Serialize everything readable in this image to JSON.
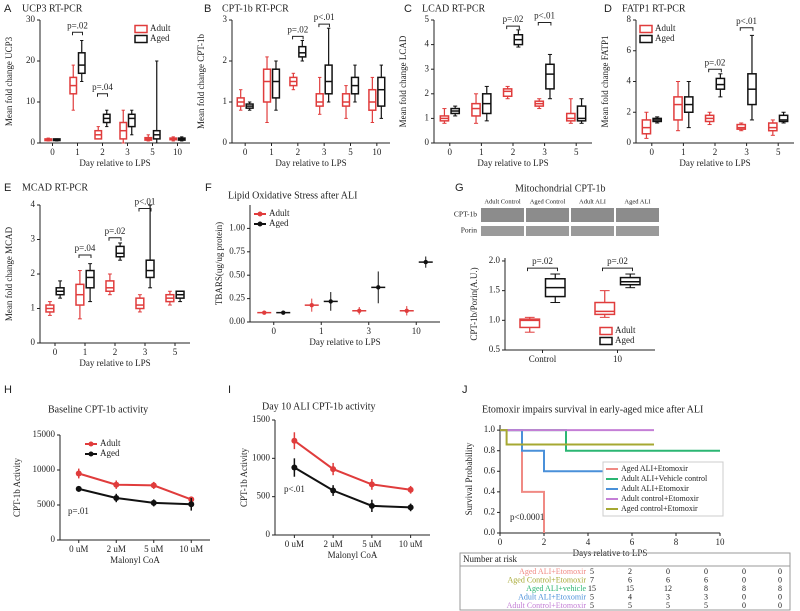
{
  "chart_data": [
    {
      "type": "box",
      "label": "A",
      "title": "UCP3 RT-PCR",
      "ylabel": "Mean fold change  UCP3",
      "xlabel": "Day relative to LPS",
      "categories": [
        "0",
        "1",
        "2",
        "3",
        "5",
        "10"
      ],
      "ylim": [
        0,
        30
      ],
      "yticks": [
        0,
        10,
        20,
        30
      ],
      "legend": "upper right",
      "annotations": [
        "p=.02",
        "p=.04"
      ],
      "series": [
        {
          "name": "Adult",
          "color": "#e03c3c",
          "boxes": [
            [
              0.5,
              0.6,
              0.8,
              1,
              1.2
            ],
            [
              8,
              12,
              14,
              16,
              19
            ],
            [
              1,
              1,
              2,
              3,
              4
            ],
            [
              0,
              1,
              3,
              5,
              8
            ],
            [
              0.5,
              0.7,
              1,
              1.3,
              2
            ],
            [
              0.5,
              0.8,
              1,
              1.2,
              1.5
            ]
          ]
        },
        {
          "name": "Aged",
          "color": "#111111",
          "boxes": [
            [
              0.5,
              0.6,
              0.8,
              1,
              1
            ],
            [
              15,
              17,
              19,
              22,
              25
            ],
            [
              4,
              5,
              6,
              7,
              8
            ],
            [
              2,
              4,
              6,
              7,
              8
            ],
            [
              0,
              1,
              2,
              3,
              20
            ],
            [
              0.5,
              0.7,
              1,
              1.2,
              1.5
            ]
          ]
        }
      ]
    },
    {
      "type": "box",
      "label": "B",
      "title": "CPT-1b RT-PCR",
      "ylabel": "Mean fold change  CPT-1b",
      "xlabel": "Day relative to  LPS",
      "categories": [
        "0",
        "1",
        "2",
        "3",
        "5",
        "10"
      ],
      "ylim": [
        0,
        3
      ],
      "yticks": [
        0,
        1,
        2,
        3
      ],
      "annotations": [
        "p=.02",
        "p<.01"
      ],
      "series": [
        {
          "color": "#e03c3c",
          "boxes": [
            [
              0.8,
              0.9,
              1,
              1.1,
              1.3
            ],
            [
              0.5,
              1,
              1.5,
              1.8,
              2.1
            ],
            [
              1.3,
              1.4,
              1.5,
              1.6,
              1.7
            ],
            [
              0.7,
              0.9,
              1,
              1.2,
              1.6
            ],
            [
              0.6,
              0.9,
              1,
              1.2,
              1.4
            ],
            [
              0.5,
              0.8,
              1,
              1.3,
              1.6
            ]
          ]
        },
        {
          "color": "#111111",
          "boxes": [
            [
              0.8,
              0.85,
              0.9,
              0.95,
              1
            ],
            [
              0.8,
              1.1,
              1.5,
              1.8,
              2
            ],
            [
              2,
              2.1,
              2.2,
              2.35,
              2.5
            ],
            [
              1,
              1.2,
              1.5,
              1.9,
              2.8
            ],
            [
              1,
              1.2,
              1.4,
              1.6,
              1.9
            ],
            [
              0.6,
              0.9,
              1.3,
              1.6,
              1.9
            ]
          ]
        }
      ]
    },
    {
      "type": "box",
      "label": "C",
      "title": "LCAD RT-PCR",
      "ylabel": "Mean fold change  LCAD",
      "xlabel": "Day relative to  LPS",
      "categories": [
        "0",
        "1",
        "2",
        "3",
        "5"
      ],
      "ylim": [
        0,
        5
      ],
      "yticks": [
        0,
        1,
        2,
        3,
        4,
        5
      ],
      "annotations": [
        "p=.02",
        "p<.01"
      ],
      "series": [
        {
          "color": "#e03c3c",
          "boxes": [
            [
              0.8,
              0.9,
              1,
              1.1,
              1.4
            ],
            [
              0.8,
              1.1,
              1.4,
              1.6,
              2
            ],
            [
              1.8,
              1.9,
              2.1,
              2.2,
              2.3
            ],
            [
              1.4,
              1.5,
              1.6,
              1.7,
              1.8
            ],
            [
              0.8,
              0.9,
              1,
              1.2,
              1.8
            ]
          ]
        },
        {
          "color": "#111111",
          "boxes": [
            [
              1.1,
              1.2,
              1.3,
              1.4,
              1.5
            ],
            [
              0.9,
              1.2,
              1.6,
              2,
              2.3
            ],
            [
              3.9,
              4,
              4.2,
              4.4,
              4.6
            ],
            [
              1.8,
              2.2,
              2.8,
              3.2,
              3.6
            ],
            [
              0.8,
              0.9,
              1,
              1.5,
              1.8
            ]
          ]
        }
      ]
    },
    {
      "type": "box",
      "label": "D",
      "title": "FATP1 RT-PCR",
      "ylabel": "Mean fold change  FATP1",
      "xlabel": "Day relative to  LPS",
      "categories": [
        "0",
        "1",
        "2",
        "3",
        "5"
      ],
      "ylim": [
        0,
        8
      ],
      "yticks": [
        0,
        2,
        4,
        6,
        8
      ],
      "legend": "upper left",
      "annotations": [
        "p=.02",
        "p<.01"
      ],
      "series": [
        {
          "name": "Adult",
          "color": "#e03c3c",
          "boxes": [
            [
              0.3,
              0.6,
              1,
              1.5,
              2
            ],
            [
              0.8,
              1.5,
              2.5,
              3,
              4
            ],
            [
              1.2,
              1.4,
              1.6,
              1.8,
              2
            ],
            [
              0.8,
              0.9,
              1,
              1.2,
              1.3
            ],
            [
              0.5,
              0.8,
              1,
              1.3,
              1.5
            ]
          ]
        },
        {
          "name": "Aged",
          "color": "#111111",
          "boxes": [
            [
              1.3,
              1.4,
              1.5,
              1.6,
              1.7
            ],
            [
              1,
              2,
              2.5,
              3,
              4
            ],
            [
              3,
              3.5,
              3.8,
              4.2,
              4.5
            ],
            [
              1.5,
              2.5,
              3.5,
              4.5,
              7
            ],
            [
              1.3,
              1.4,
              1.5,
              1.8,
              2
            ]
          ]
        }
      ]
    },
    {
      "type": "box",
      "label": "E",
      "title": "MCAD RT-PCR",
      "ylabel": "Mean fold change  MCAD",
      "xlabel": "Day relative to  LPS",
      "categories": [
        "0",
        "1",
        "2",
        "3",
        "5"
      ],
      "ylim": [
        0,
        4
      ],
      "yticks": [
        0,
        1,
        2,
        3,
        4
      ],
      "annotations": [
        "p=.04",
        "p=.02",
        "p<.01"
      ],
      "series": [
        {
          "color": "#e03c3c",
          "boxes": [
            [
              0.8,
              0.9,
              1,
              1.1,
              1.2
            ],
            [
              0.7,
              1.1,
              1.4,
              1.7,
              2.1
            ],
            [
              1.4,
              1.5,
              1.6,
              1.8,
              2
            ],
            [
              0.9,
              1,
              1.1,
              1.3,
              1.4
            ],
            [
              1.1,
              1.2,
              1.3,
              1.4,
              1.5
            ]
          ]
        },
        {
          "color": "#111111",
          "boxes": [
            [
              1.3,
              1.4,
              1.5,
              1.6,
              1.8
            ],
            [
              1.2,
              1.6,
              1.9,
              2.1,
              2.3
            ],
            [
              2.4,
              2.5,
              2.6,
              2.8,
              2.9
            ],
            [
              1.6,
              1.9,
              2.1,
              2.4,
              4
            ],
            [
              1.2,
              1.3,
              1.4,
              1.5,
              1.5
            ]
          ]
        }
      ]
    },
    {
      "type": "mean",
      "label": "F",
      "title": "Lipid Oxidative Stress after ALI",
      "ylabel": "TBARS(ug/ug protein)",
      "xlabel": "Day relative to  LPS",
      "categories": [
        "0",
        "1",
        "3",
        "10"
      ],
      "ylim": [
        0,
        1.25
      ],
      "yticks": [
        {
          "value": 0,
          "label": "0.00"
        },
        {
          "value": 0.25,
          "label": "0.25"
        },
        {
          "value": 0.5,
          "label": "0.50"
        },
        {
          "value": 0.75,
          "label": "0.75"
        },
        {
          "value": 1,
          "label": "1.00"
        }
      ],
      "legend": "upper left",
      "series": [
        {
          "name": "Adult",
          "color": "#e03c3c",
          "values": [
            0.1,
            0.18,
            0.12,
            0.12
          ],
          "errors": [
            0.02,
            0.07,
            0.04,
            0.05
          ]
        },
        {
          "name": "Aged",
          "color": "#111111",
          "values": [
            0.1,
            0.22,
            0.37,
            0.64
          ],
          "errors": [
            0.02,
            0.1,
            0.17,
            0.06
          ]
        }
      ]
    },
    {
      "type": "box",
      "label": "G",
      "title": "Mitochondrial CPT-1b",
      "ylabel": "CPT-1b/Porin(A.U.)",
      "blot": {
        "lanes": [
          "Adult Control",
          "Aged Control",
          "Adult ALI",
          "Aged ALI"
        ],
        "bands": [
          "CPT-1b",
          "Porin"
        ]
      },
      "categories": [
        "Control",
        "10"
      ],
      "ylim": [
        0.5,
        2.05
      ],
      "yticks": [
        0.5,
        {
          "value": 1,
          "label": "1.0"
        },
        1.5,
        {
          "value": 2,
          "label": "2.0"
        }
      ],
      "legend": "lower right",
      "annotations": [
        "p=.02",
        "p=.02"
      ],
      "series": [
        {
          "name": "Adult",
          "color": "#e03c3c",
          "boxes": [
            [
              0.8,
              0.88,
              1,
              1.02,
              1.05
            ],
            [
              1.05,
              1.1,
              1.15,
              1.3,
              1.5
            ]
          ]
        },
        {
          "name": "Aged",
          "color": "#111111",
          "boxes": [
            [
              1.3,
              1.4,
              1.55,
              1.7,
              1.78
            ],
            [
              1.55,
              1.6,
              1.65,
              1.72,
              1.78
            ]
          ]
        }
      ]
    },
    {
      "type": "line",
      "label": "H",
      "title": "Baseline CPT-1b activity",
      "ylabel": "CPT-1b Activity",
      "xlabel": "Malonyl CoA",
      "categories": [
        "0 uM",
        "2 uM",
        "5 uM",
        "10 uM"
      ],
      "ylim": [
        0,
        15000
      ],
      "yticks": [
        0,
        5000,
        10000,
        15000
      ],
      "legend": "upper center",
      "annotations": [
        "p=.01"
      ],
      "series": [
        {
          "name": "Adult",
          "color": "#e03c3c",
          "values": [
            9500,
            7900,
            7800,
            5800
          ],
          "errors": [
            700,
            600,
            500,
            400
          ]
        },
        {
          "name": "Aged",
          "color": "#111111",
          "values": [
            7300,
            6000,
            5300,
            5100
          ],
          "errors": [
            400,
            600,
            500,
            900
          ]
        }
      ]
    },
    {
      "type": "line",
      "label": "I",
      "title": "Day 10 ALI CPT-1b activity",
      "ylabel": "CPT-1b Activity",
      "xlabel": "Malonyl CoA",
      "categories": [
        "0 uM",
        "2 uM",
        "5 uM",
        "10 uM"
      ],
      "ylim": [
        0,
        1500
      ],
      "yticks": [
        0,
        500,
        1000,
        1500
      ],
      "annotations": [
        "p<.01"
      ],
      "series": [
        {
          "color": "#e03c3c",
          "values": [
            1230,
            860,
            660,
            590
          ],
          "errors": [
            110,
            80,
            70,
            50
          ]
        },
        {
          "color": "#111111",
          "values": [
            880,
            580,
            380,
            360
          ],
          "errors": [
            120,
            70,
            80,
            50
          ]
        }
      ]
    },
    {
      "type": "step",
      "label": "J",
      "title": "Etomoxir impairs survival in early-aged mice after ALI",
      "ylabel": "Survival Probability",
      "xlabel": "Days relative to LPS",
      "xlim": [
        0,
        10
      ],
      "xticks": [
        0,
        2,
        4,
        6,
        8,
        10
      ],
      "ylim": [
        0,
        1.05
      ],
      "yticks": [
        {
          "value": 0,
          "label": "0.0"
        },
        0.2,
        0.4,
        0.6,
        0.8,
        {
          "value": 1,
          "label": "1.0"
        }
      ],
      "legend": "center right",
      "annotations": [
        "p<0.0001"
      ],
      "series": [
        {
          "name": "Aged ALI+Etomoxir",
          "color": "#f08a84",
          "x": [
            0,
            1,
            2
          ],
          "y": [
            1,
            0.4,
            0
          ]
        },
        {
          "name": "Adult ALI+Vehicle control",
          "color": "#2bb673",
          "x": [
            0,
            3,
            10
          ],
          "y": [
            1,
            0.8,
            0.8
          ]
        },
        {
          "name": "Adult ALI+Etomoxir",
          "color": "#4a90d9",
          "x": [
            0,
            1,
            2,
            7
          ],
          "y": [
            1,
            0.8,
            0.6,
            0.6
          ]
        },
        {
          "name": "Adult control+Etomoxir",
          "color": "#c47fd6",
          "x": [
            0,
            7
          ],
          "y": [
            1,
            1
          ]
        },
        {
          "name": "Aged control+Etomoxir",
          "color": "#a6a832",
          "x": [
            0,
            0.3,
            7
          ],
          "y": [
            1,
            0.86,
            0.86
          ]
        }
      ],
      "risk_table": {
        "title": "Number at risk",
        "rows": [
          {
            "label": "Aged ALI+Etomoxir",
            "color": "#f08a84",
            "values": [
              5,
              2,
              0,
              0,
              0,
              0
            ]
          },
          {
            "label": "Aged Control+Etomoxir",
            "color": "#a6a832",
            "values": [
              7,
              6,
              6,
              6,
              0,
              0
            ]
          },
          {
            "label": "Aged ALI+vehicle",
            "color": "#2bb673",
            "values": [
              15,
              15,
              12,
              8,
              8,
              8
            ]
          },
          {
            "label": "Adult ALI+Etoxomir",
            "color": "#4a90d9",
            "values": [
              5,
              4,
              3,
              3,
              0,
              0
            ]
          },
          {
            "label": "Adult Control+Etomoxir",
            "color": "#c47fd6",
            "values": [
              5,
              5,
              5,
              5,
              0,
              0
            ]
          }
        ]
      }
    }
  ]
}
